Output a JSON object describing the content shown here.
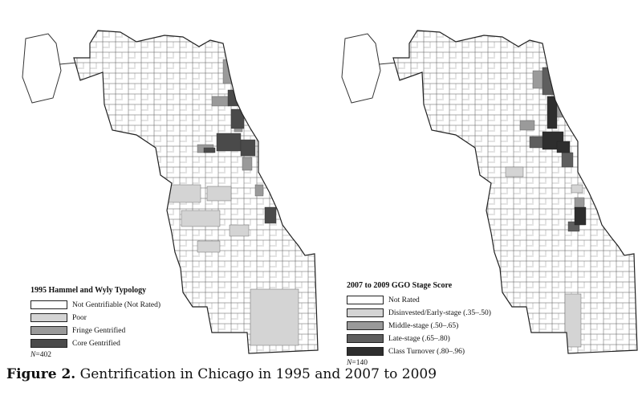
{
  "maps": [
    {
      "id": "map-1995",
      "legend": {
        "title": "1995 Hammel and Wyly Typology",
        "items": [
          {
            "label": "Not Gentrifiable (Not Rated)",
            "color": "#ffffff"
          },
          {
            "label": "Poor",
            "color": "#d4d4d4"
          },
          {
            "label": "Fringe Gentrified",
            "color": "#9a9a9a"
          },
          {
            "label": "Core Gentrified",
            "color": "#4a4a4a"
          }
        ],
        "n_prefix": "N",
        "n_value": "=402"
      }
    },
    {
      "id": "map-2007-2009",
      "legend": {
        "title": "2007 to 2009 GGO Stage Score",
        "items": [
          {
            "label": "Not Rated",
            "color": "#ffffff"
          },
          {
            "label": "Disinvested/Early-stage (.35–.50)",
            "color": "#d4d4d4"
          },
          {
            "label": "Middle-stage (.50–.65)",
            "color": "#9a9a9a"
          },
          {
            "label": "Late-stage (.65–.80)",
            "color": "#5e5e5e"
          },
          {
            "label": "Class Turnover (.80–.96)",
            "color": "#2e2e2e"
          }
        ],
        "n_prefix": "N",
        "n_value": "=140"
      }
    }
  ],
  "caption": {
    "label": "Figure 2.",
    "text": " Gentrification in Chicago in 1995 and 2007 to 2009"
  }
}
